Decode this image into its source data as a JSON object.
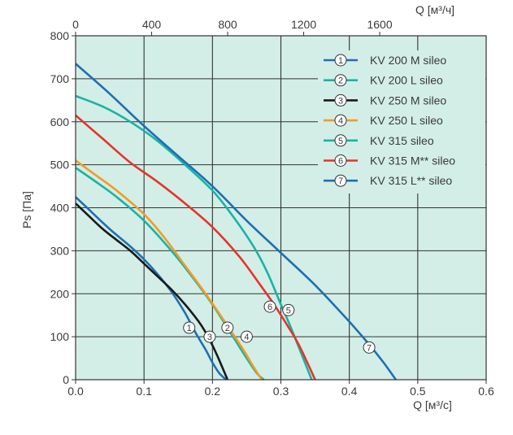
{
  "chart_data": {
    "type": "line",
    "xlabel": "Q [м³/с]",
    "x2label": "Q [м³/ч]",
    "ylabel": "Ps [Па]",
    "xlim": [
      0,
      0.6
    ],
    "ylim": [
      0,
      800
    ],
    "x2lim": [
      0,
      2160
    ],
    "xticks": [
      "0.0",
      "0.1",
      "0.2",
      "0.3",
      "0.4",
      "0.5",
      "0.6"
    ],
    "x2ticks": [
      "0",
      "400",
      "800",
      "1200",
      "1600"
    ],
    "yticks": [
      "0",
      "100",
      "200",
      "300",
      "400",
      "500",
      "600",
      "700",
      "800"
    ],
    "grid": true,
    "background": "#d3eee7",
    "legend_position": "top-right",
    "series": [
      {
        "marker": "1",
        "name": "KV 200 M sileo",
        "color": "#1f6fb5",
        "x": [
          0,
          0.02,
          0.05,
          0.08,
          0.1,
          0.12,
          0.14,
          0.16,
          0.175,
          0.19,
          0.2,
          0.21,
          0.22
        ],
        "y": [
          425,
          395,
          350,
          310,
          280,
          245,
          205,
          155,
          110,
          70,
          40,
          15,
          0
        ],
        "label_at": [
          0.166,
          121
        ]
      },
      {
        "marker": "2",
        "name": "KV 200 L sileo",
        "color": "#19b3a5",
        "x": [
          0,
          0.03,
          0.06,
          0.1,
          0.14,
          0.17,
          0.2,
          0.23,
          0.25,
          0.265,
          0.275
        ],
        "y": [
          493,
          460,
          425,
          370,
          300,
          240,
          175,
          100,
          50,
          15,
          0
        ],
        "label_at": [
          0.222,
          121
        ]
      },
      {
        "marker": "3",
        "name": "KV 250 M sileo",
        "color": "#1a1a1a",
        "x": [
          0,
          0.02,
          0.04,
          0.06,
          0.08,
          0.1,
          0.12,
          0.14,
          0.16,
          0.18,
          0.19,
          0.2,
          0.21,
          0.222
        ],
        "y": [
          410,
          380,
          350,
          325,
          300,
          270,
          240,
          210,
          175,
          135,
          110,
          80,
          45,
          0
        ],
        "label_at": [
          0.196,
          100
        ]
      },
      {
        "marker": "4",
        "name": "KV 250 L sileo",
        "color": "#f59a23",
        "x": [
          0,
          0.03,
          0.06,
          0.1,
          0.13,
          0.16,
          0.19,
          0.22,
          0.245,
          0.26,
          0.272
        ],
        "y": [
          510,
          475,
          440,
          385,
          330,
          265,
          200,
          130,
          70,
          30,
          0
        ],
        "label_at": [
          0.25,
          100
        ]
      },
      {
        "marker": "5",
        "name": "KV 315 sileo",
        "color": "#19b3a5",
        "x": [
          0,
          0.04,
          0.08,
          0.12,
          0.16,
          0.2,
          0.23,
          0.26,
          0.28,
          0.3,
          0.315,
          0.33,
          0.345
        ],
        "y": [
          660,
          635,
          600,
          555,
          500,
          440,
          380,
          310,
          250,
          175,
          120,
          60,
          0
        ],
        "label_at": [
          0.311,
          162
        ]
      },
      {
        "marker": "6",
        "name": "KV 315 M** sileo",
        "color": "#e5352a",
        "x": [
          0,
          0.04,
          0.08,
          0.12,
          0.16,
          0.2,
          0.24,
          0.27,
          0.29,
          0.31,
          0.325,
          0.34,
          0.35
        ],
        "y": [
          615,
          560,
          505,
          460,
          410,
          355,
          285,
          220,
          175,
          125,
          85,
          35,
          0
        ],
        "label_at": [
          0.284,
          170
        ]
      },
      {
        "marker": "7",
        "name": "KV 315 L** sileo",
        "color": "#1f6fb5",
        "x": [
          0,
          0.05,
          0.1,
          0.15,
          0.2,
          0.25,
          0.3,
          0.35,
          0.4,
          0.43,
          0.45,
          0.468
        ],
        "y": [
          735,
          665,
          590,
          520,
          450,
          370,
          295,
          220,
          135,
          80,
          40,
          0
        ],
        "label_at": [
          0.429,
          75
        ]
      }
    ]
  }
}
